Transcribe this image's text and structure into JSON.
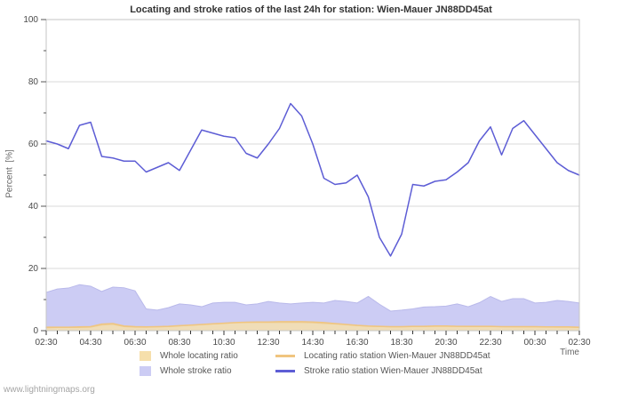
{
  "watermark": "www.lightningmaps.org",
  "chart_data": {
    "type": "area",
    "title": "Locating and stroke ratios of the last 24h for station: Wien-Mauer JN88DD45at",
    "ylabel": "Percent  [%]",
    "xlabel": "Time",
    "ylim": [
      0,
      100
    ],
    "grid": "horizontal",
    "legend_position": "bottom",
    "y_major_ticks": [
      0,
      20,
      40,
      60,
      80,
      100
    ],
    "y_minor_ticks": [
      10,
      30,
      50,
      70,
      90
    ],
    "x_tick_labels": [
      "02:30",
      "04:30",
      "06:30",
      "08:30",
      "10:30",
      "12:30",
      "14:30",
      "16:30",
      "18:30",
      "20:30",
      "22:30",
      "00:30",
      "02:30"
    ],
    "x_minor_step_minutes": 30,
    "times": [
      "02:30",
      "03:00",
      "03:30",
      "04:00",
      "04:30",
      "05:00",
      "05:30",
      "06:00",
      "06:30",
      "07:00",
      "07:30",
      "08:00",
      "08:30",
      "09:00",
      "09:30",
      "10:00",
      "10:30",
      "11:00",
      "11:30",
      "12:00",
      "12:30",
      "13:00",
      "13:30",
      "14:00",
      "14:30",
      "15:00",
      "15:30",
      "16:00",
      "16:30",
      "17:00",
      "17:30",
      "18:00",
      "18:30",
      "19:00",
      "19:30",
      "20:00",
      "20:30",
      "21:00",
      "21:30",
      "22:00",
      "22:30",
      "23:00",
      "23:30",
      "00:00",
      "00:30",
      "01:00",
      "01:30",
      "02:00",
      "02:30"
    ],
    "draw_order": [
      1,
      0,
      2,
      3
    ],
    "series": [
      {
        "id": "whole-locating-ratio",
        "name": "Whole locating ratio",
        "type": "area",
        "color": "#f6dfab",
        "edge": "#edcf97",
        "opacity": 0.85,
        "values": [
          0.9,
          1.0,
          1.0,
          1.0,
          1.1,
          1.8,
          2.0,
          1.3,
          1.1,
          1.1,
          1.2,
          1.3,
          1.5,
          1.7,
          1.9,
          2.1,
          2.3,
          2.5,
          2.6,
          2.6,
          2.6,
          2.6,
          2.6,
          2.6,
          2.5,
          2.3,
          2.1,
          1.9,
          1.6,
          1.4,
          1.3,
          1.2,
          1.2,
          1.3,
          1.3,
          1.4,
          1.4,
          1.4,
          1.3,
          1.3,
          1.3,
          1.3,
          1.2,
          1.2,
          1.2,
          1.2,
          1.1,
          1.1,
          1.0
        ]
      },
      {
        "id": "whole-stroke-ratio",
        "name": "Whole stroke ratio",
        "type": "area",
        "color": "#ccccf4",
        "edge": "#b9b9ea",
        "opacity": 1,
        "values": [
          12.3,
          13.4,
          13.7,
          14.8,
          14.3,
          12.6,
          14.0,
          13.8,
          12.8,
          7.0,
          6.6,
          7.4,
          8.6,
          8.3,
          7.7,
          8.9,
          9.1,
          9.1,
          8.3,
          8.6,
          9.4,
          8.9,
          8.6,
          8.9,
          9.1,
          8.9,
          9.7,
          9.4,
          8.9,
          11.0,
          8.5,
          6.3,
          6.6,
          7.0,
          7.6,
          7.7,
          7.9,
          8.6,
          7.7,
          9.0,
          11.0,
          9.4,
          10.3,
          10.3,
          8.9,
          9.1,
          9.7,
          9.4,
          8.9
        ]
      },
      {
        "id": "locating-ratio-station",
        "name": "Locating ratio station Wien-Mauer JN88DD45at",
        "type": "line",
        "color": "#f0c57f",
        "values": [
          1.1,
          1.1,
          1.1,
          1.2,
          1.3,
          2.1,
          2.3,
          1.5,
          1.3,
          1.2,
          1.3,
          1.4,
          1.6,
          1.8,
          2.0,
          2.2,
          2.4,
          2.6,
          2.7,
          2.8,
          2.8,
          2.9,
          2.9,
          2.9,
          2.8,
          2.6,
          2.3,
          2.0,
          1.7,
          1.5,
          1.4,
          1.3,
          1.3,
          1.4,
          1.4,
          1.5,
          1.5,
          1.4,
          1.4,
          1.4,
          1.4,
          1.3,
          1.3,
          1.3,
          1.3,
          1.2,
          1.2,
          1.2,
          1.1
        ]
      },
      {
        "id": "stroke-ratio-station",
        "name": "Stroke ratio station Wien-Mauer JN88DD45at",
        "type": "line",
        "color": "#5d5dd5",
        "values": [
          61,
          60,
          58.5,
          66,
          67,
          56,
          55.5,
          54.5,
          54.5,
          51,
          52.5,
          54,
          51.5,
          58,
          64.5,
          63.5,
          62.5,
          62,
          57,
          55.5,
          60,
          65,
          73,
          69,
          60,
          49,
          47,
          47.5,
          50,
          43,
          30,
          24,
          31,
          47,
          46.5,
          48,
          48.5,
          51,
          54,
          61,
          65.5,
          56.5,
          65,
          67.5,
          63,
          58.5,
          54,
          51.5,
          50
        ]
      }
    ]
  }
}
